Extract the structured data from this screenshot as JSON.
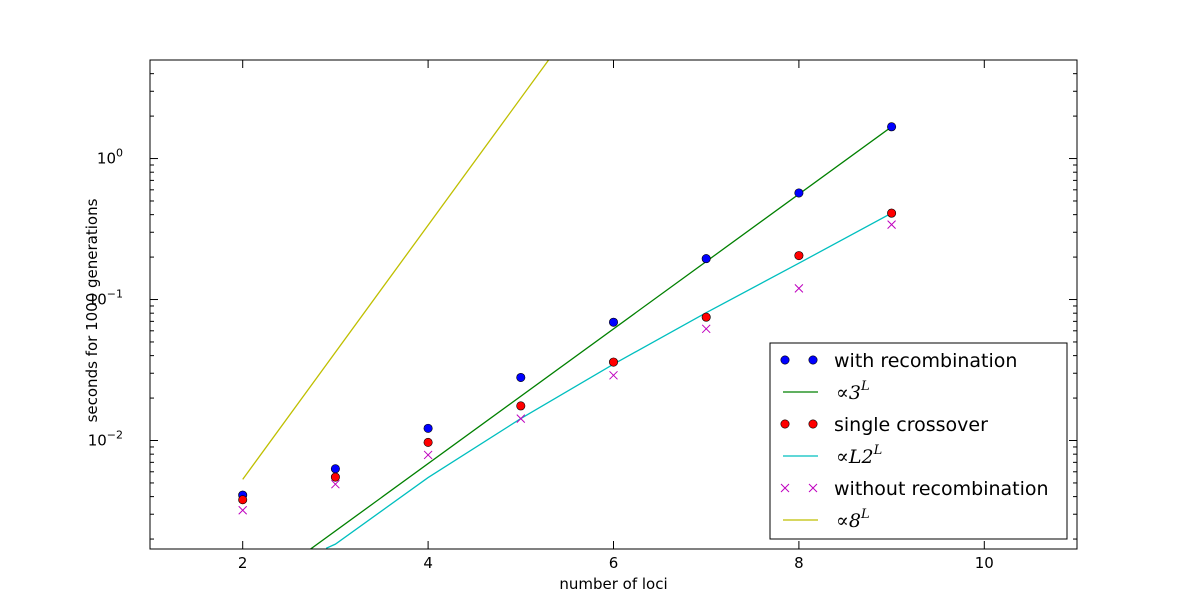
{
  "chart_data": {
    "type": "scatter",
    "xlabel": "number of loci",
    "ylabel": "seconds for 1000 generations",
    "xlim": [
      1,
      11
    ],
    "ylim": [
      0.0017,
      5.0
    ],
    "yscale": "log",
    "x_ticks": [
      2,
      4,
      6,
      8,
      10
    ],
    "x_tick_labels": [
      "2",
      "4",
      "6",
      "8",
      "10"
    ],
    "y_major_ticks": [
      0.01,
      0.1,
      1
    ],
    "grid": false,
    "legend_position": "bottom-right",
    "series": [
      {
        "name": "with recombination",
        "kind": "markers",
        "marker": "circle",
        "color": "#0000ff",
        "x": [
          2,
          3,
          4,
          5,
          6,
          7,
          8,
          9
        ],
        "y": [
          0.0041,
          0.0063,
          0.0122,
          0.028,
          0.069,
          0.195,
          0.57,
          1.68
        ]
      },
      {
        "name": "∝3^L",
        "label_base": "∝3",
        "label_sup": "L",
        "kind": "line",
        "color": "#008000",
        "x": [
          2.7,
          9
        ],
        "y": [
          0.00164,
          1.68
        ]
      },
      {
        "name": "single crossover",
        "kind": "markers",
        "marker": "circle",
        "color": "#ff0000",
        "x": [
          2,
          3,
          4,
          5,
          6,
          7,
          8,
          9
        ],
        "y": [
          0.0038,
          0.0055,
          0.0097,
          0.0176,
          0.036,
          0.075,
          0.205,
          0.41
        ]
      },
      {
        "name": "∝L2^L",
        "label_base": "∝L2",
        "label_sup": "L",
        "kind": "line",
        "color": "#00bfbf",
        "x": [
          2.9,
          3,
          4,
          5,
          6,
          7,
          8,
          9
        ],
        "y": [
          0.00172,
          0.00184,
          0.00546,
          0.0143,
          0.0348,
          0.0807,
          0.181,
          0.41
        ]
      },
      {
        "name": "without recombination",
        "kind": "markers",
        "marker": "x",
        "color": "#bf00bf",
        "x": [
          2,
          3,
          4,
          5,
          6,
          7,
          8,
          9
        ],
        "y": [
          0.0032,
          0.0049,
          0.0079,
          0.0143,
          0.029,
          0.062,
          0.12,
          0.34
        ]
      },
      {
        "name": "∝8^L",
        "label_base": "∝8",
        "label_sup": "L",
        "kind": "line",
        "color": "#bfbf00",
        "x": [
          2,
          5.3
        ],
        "y": [
          0.0053,
          5.0
        ]
      }
    ]
  }
}
